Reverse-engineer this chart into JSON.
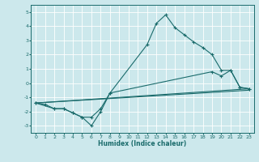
{
  "title": "",
  "xlabel": "Humidex (Indice chaleur)",
  "xlim": [
    -0.5,
    23.5
  ],
  "ylim": [
    -3.5,
    5.5
  ],
  "xticks": [
    0,
    1,
    2,
    3,
    4,
    5,
    6,
    7,
    8,
    9,
    10,
    11,
    12,
    13,
    14,
    15,
    16,
    17,
    18,
    19,
    20,
    21,
    22,
    23
  ],
  "yticks": [
    -3,
    -2,
    -1,
    0,
    1,
    2,
    3,
    4,
    5
  ],
  "bg_color": "#cce8ec",
  "line_color": "#1a6b6b",
  "grid_color": "#ffffff",
  "line1_x": [
    0,
    1,
    2,
    3,
    4,
    5,
    6,
    7,
    8,
    12,
    13,
    14,
    15,
    16,
    17,
    18,
    19,
    20,
    21,
    22,
    23
  ],
  "line1_y": [
    -1.4,
    -1.5,
    -1.8,
    -1.8,
    -2.1,
    -2.4,
    -3.0,
    -2.0,
    -0.7,
    2.7,
    4.2,
    4.8,
    3.9,
    3.4,
    2.9,
    2.5,
    2.0,
    0.9,
    0.9,
    -0.3,
    -0.4
  ],
  "line2_x": [
    0,
    2,
    3,
    4,
    5,
    6,
    7,
    8,
    19,
    20,
    21,
    22,
    23
  ],
  "line2_y": [
    -1.4,
    -1.8,
    -1.8,
    -2.1,
    -2.4,
    -2.4,
    -1.8,
    -0.7,
    0.8,
    0.5,
    0.9,
    -0.3,
    -0.4
  ],
  "line3_x": [
    0,
    23
  ],
  "line3_y": [
    -1.4,
    -0.4
  ],
  "line4_x": [
    0,
    23
  ],
  "line4_y": [
    -1.4,
    -0.5
  ],
  "figsize": [
    3.2,
    2.0
  ],
  "dpi": 100
}
